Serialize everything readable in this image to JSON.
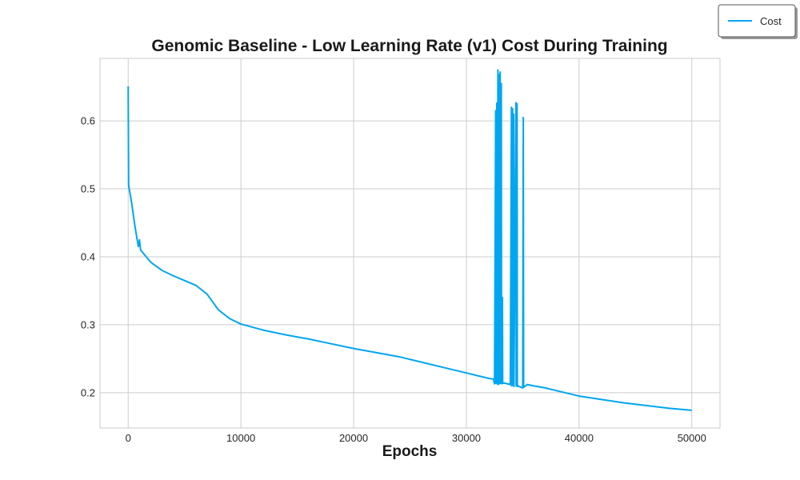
{
  "chart_data": {
    "type": "line",
    "title": "Genomic Baseline - Low Learning Rate (v1) Cost During Training",
    "xlabel": "Epochs",
    "ylabel": "",
    "xlim": [
      -2500,
      52500
    ],
    "ylim": [
      0.148,
      0.692
    ],
    "xticks": [
      0,
      10000,
      20000,
      30000,
      40000,
      50000
    ],
    "yticks": [
      0.2,
      0.3,
      0.4,
      0.5,
      0.6
    ],
    "grid": true,
    "legend": {
      "position": "top-right",
      "entries": [
        "Cost"
      ]
    },
    "series": [
      {
        "name": "Cost",
        "color": "#00a6f0",
        "points": [
          [
            0,
            0.651
          ],
          [
            40,
            0.505
          ],
          [
            300,
            0.48
          ],
          [
            600,
            0.445
          ],
          [
            900,
            0.415
          ],
          [
            1000,
            0.425
          ],
          [
            1100,
            0.41
          ],
          [
            2000,
            0.392
          ],
          [
            3000,
            0.38
          ],
          [
            4000,
            0.372
          ],
          [
            5000,
            0.365
          ],
          [
            6000,
            0.358
          ],
          [
            7000,
            0.345
          ],
          [
            8000,
            0.322
          ],
          [
            9000,
            0.309
          ],
          [
            10000,
            0.301
          ],
          [
            12000,
            0.292
          ],
          [
            14000,
            0.285
          ],
          [
            16000,
            0.279
          ],
          [
            18000,
            0.272
          ],
          [
            20000,
            0.265
          ],
          [
            22000,
            0.259
          ],
          [
            24000,
            0.253
          ],
          [
            26000,
            0.245
          ],
          [
            28000,
            0.237
          ],
          [
            30000,
            0.229
          ],
          [
            31000,
            0.225
          ],
          [
            32000,
            0.221
          ],
          [
            32400,
            0.22
          ],
          [
            32500,
            0.213
          ],
          [
            32600,
            0.615
          ],
          [
            32620,
            0.214
          ],
          [
            32700,
            0.626
          ],
          [
            32720,
            0.213
          ],
          [
            32800,
            0.675
          ],
          [
            32820,
            0.212
          ],
          [
            32900,
            0.668
          ],
          [
            32920,
            0.213
          ],
          [
            33000,
            0.672
          ],
          [
            33020,
            0.214
          ],
          [
            33100,
            0.655
          ],
          [
            33120,
            0.213
          ],
          [
            33200,
            0.34
          ],
          [
            33220,
            0.214
          ],
          [
            33400,
            0.214
          ],
          [
            33900,
            0.212
          ],
          [
            34000,
            0.62
          ],
          [
            34020,
            0.21
          ],
          [
            34100,
            0.618
          ],
          [
            34120,
            0.211
          ],
          [
            34200,
            0.61
          ],
          [
            34220,
            0.209
          ],
          [
            34400,
            0.627
          ],
          [
            34420,
            0.21
          ],
          [
            34500,
            0.625
          ],
          [
            34520,
            0.209
          ],
          [
            34600,
            0.21
          ],
          [
            34700,
            0.209
          ],
          [
            35000,
            0.207
          ],
          [
            35050,
            0.605
          ],
          [
            35080,
            0.208
          ],
          [
            35400,
            0.212
          ],
          [
            36000,
            0.21
          ],
          [
            37000,
            0.207
          ],
          [
            38000,
            0.203
          ],
          [
            39000,
            0.199
          ],
          [
            40000,
            0.195
          ],
          [
            42000,
            0.19
          ],
          [
            44000,
            0.185
          ],
          [
            46000,
            0.181
          ],
          [
            48000,
            0.177
          ],
          [
            50000,
            0.174
          ]
        ]
      }
    ]
  }
}
